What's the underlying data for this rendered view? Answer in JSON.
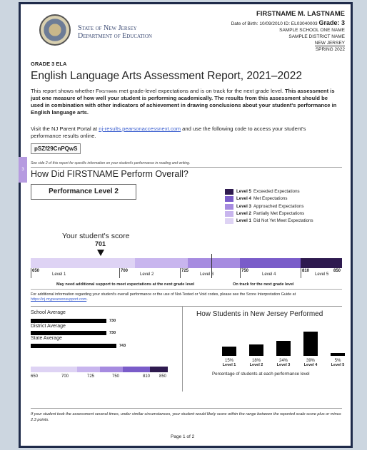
{
  "header": {
    "agency_line1": "State of New Jersey",
    "agency_line2": "Department of Education",
    "student_name": "FIRSTNAME M. LASTNAME",
    "dob_label": "Date of Birth: 10/09/2010",
    "id_label": "ID: EL03040003",
    "grade_label": "Grade: 3",
    "school": "SAMPLE SCHOOL ONE NAME",
    "district": "SAMPLE DISTRICT NAME",
    "state": "NEW JERSEY",
    "season": "SPRING 2022"
  },
  "side_tab": "3",
  "grade_heading": "GRADE 3 ELA",
  "title": "English Language Arts Assessment Report, 2021–2022",
  "intro": {
    "p1a": "This report shows whether ",
    "name_smallcaps": "Firstname",
    "p1b": " met grade-level expectations and is on track for the next grade level. ",
    "bold": "This assessment is just one measure of how well your student is performing academically. The results from this assessment should be used in combination with other indicators of achievement in drawing conclusions about your student's performance in English language arts."
  },
  "portal": {
    "a": "Visit the NJ Parent Portal at ",
    "link": "nj-results.pearsonaccessnext.com",
    "b": " and use the following code to access your student's performance results online.",
    "code": "pSZf29CnPQwS"
  },
  "see_side": "See side 2 of this report for specific information on your student's performance in reading and writing.",
  "overall_question": "How Did FIRSTNAME Perform Overall?",
  "performance_level": "Performance Level 2",
  "legend": [
    {
      "level": "Level 5",
      "desc": "Exceeded Expectations",
      "color": "#2e1a4f"
    },
    {
      "level": "Level 4",
      "desc": "Met Expectations",
      "color": "#7a5cc9"
    },
    {
      "level": "Level 3",
      "desc": "Approached Expectations",
      "color": "#a68be0"
    },
    {
      "level": "Level 2",
      "desc": "Partially Met Expectations",
      "color": "#c8b5ee"
    },
    {
      "level": "Level 1",
      "desc": "Did Not Yet Meet Expectations",
      "color": "#ded3f4"
    }
  ],
  "score": {
    "label": "Your student's score",
    "value": "701"
  },
  "scale": {
    "ticks": [
      "650",
      "700",
      "725",
      "750",
      "810",
      "850"
    ],
    "levels": [
      "Level 1",
      "Level 2",
      "Level 3",
      "Level 4",
      "Level 5"
    ],
    "note_left": "May need additional support to meet expectations at the next grade level",
    "note_right": "On track for the next grade level"
  },
  "additional_info": {
    "text": "For additional information regarding your student's overall performance or the use of Not-Tested or Void codes, please see the Score Interpretation Guide at ",
    "link": "https://nj.mypearsonsupport.com",
    "end": "."
  },
  "averages": [
    {
      "label": "School Average",
      "value": "730"
    },
    {
      "label": "District Average",
      "value": "730"
    },
    {
      "label": "State Average",
      "value": "743"
    }
  ],
  "mini_ticks": [
    "650",
    "700",
    "725",
    "750",
    "810",
    "850"
  ],
  "nj_title": "How Students in New Jersey Performed",
  "chart_data": {
    "type": "bar",
    "categories": [
      "Level 1",
      "Level 2",
      "Level 3",
      "Level 4",
      "Level 5"
    ],
    "values": [
      15,
      18,
      24,
      39,
      5
    ],
    "value_labels": [
      "15%",
      "18%",
      "24%",
      "39%",
      "5%"
    ],
    "caption": "Percentage of students at each performance level"
  },
  "footer_note": "If your student took the assessment several times, under similar circumstances, your student would likely score within the range between the reported scale score plus or minus 2.3 points.",
  "page_label": "Page 1 of 2"
}
